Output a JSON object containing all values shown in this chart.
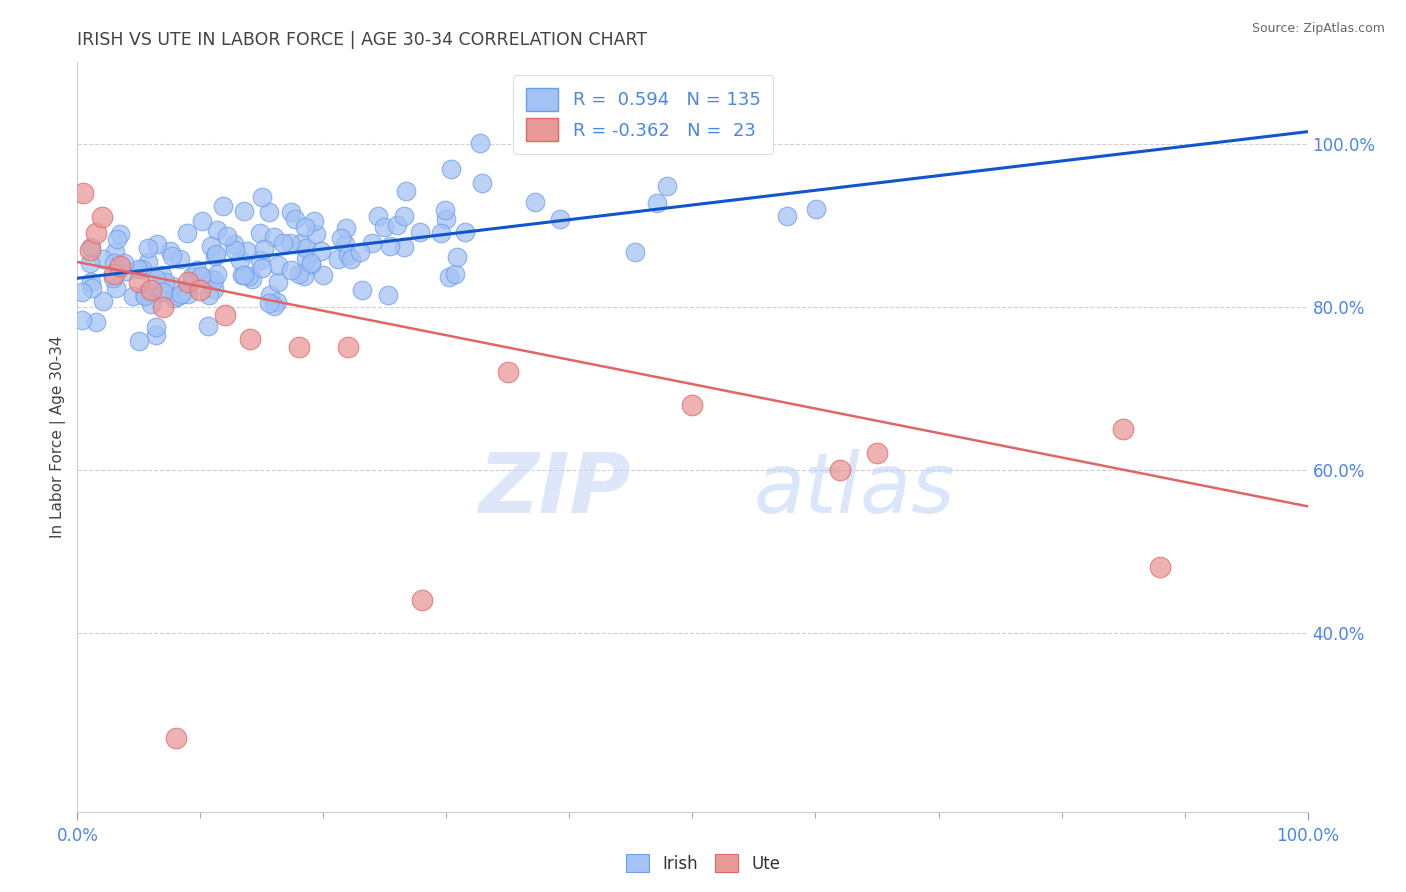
{
  "title": "IRISH VS UTE IN LABOR FORCE | AGE 30-34 CORRELATION CHART",
  "source_text": "Source: ZipAtlas.com",
  "ylabel": "In Labor Force | Age 30-34",
  "xlim": [
    0.0,
    1.0
  ],
  "ylim": [
    0.18,
    1.1
  ],
  "y_ticks": [
    0.4,
    0.6,
    0.8,
    1.0
  ],
  "y_tick_labels": [
    "40.0%",
    "60.0%",
    "80.0%",
    "100.0%"
  ],
  "blue_R": 0.594,
  "blue_N": 135,
  "pink_R": -0.362,
  "pink_N": 23,
  "blue_color": "#a4c2f4",
  "blue_edge_color": "#6d9eeb",
  "pink_color": "#ea9999",
  "pink_edge_color": "#e06666",
  "blue_line_color": "#1155cc",
  "pink_line_color": "#e06666",
  "watermark_zip_color": "#c9d7f8",
  "watermark_atlas_color": "#b7cef5",
  "legend_label_blue": "Irish",
  "legend_label_pink": "Ute",
  "background_color": "#ffffff",
  "grid_color": "#cccccc",
  "title_color": "#434343",
  "tick_color": "#4a86e8"
}
